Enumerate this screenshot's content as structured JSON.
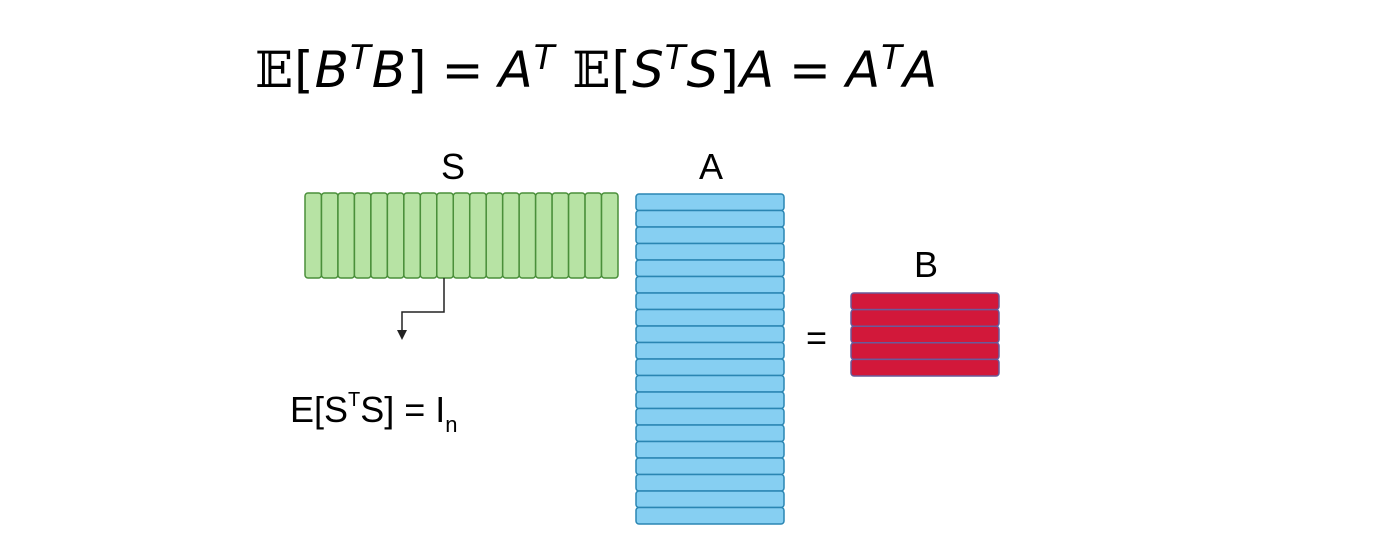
{
  "formula": {
    "expect1": "𝔼",
    "open1": "[",
    "b1": "B",
    "t1": "T",
    "b2": "B",
    "close1": "]",
    "eq1": "=",
    "a1": "A",
    "t2": "T",
    "expect2": "𝔼",
    "open2": "[",
    "s1": "S",
    "t3": "T",
    "s2": "S",
    "close2": "]",
    "a2": "A",
    "eq2": "=",
    "a3": "A",
    "t4": "T",
    "a4": "A"
  },
  "labels": {
    "s": "S",
    "a": "A",
    "b": "B",
    "equals": "="
  },
  "note": {
    "prefix": "E[S",
    "sup": "T",
    "mid": "S] = I",
    "sub": "n"
  },
  "colors": {
    "s_fill": "#b7e3a4",
    "s_stroke": "#4a8f3a",
    "a_fill": "#86cff2",
    "a_stroke": "#2a86b3",
    "b_fill": "#d2183a",
    "b_stroke": "#6a5a9a"
  }
}
